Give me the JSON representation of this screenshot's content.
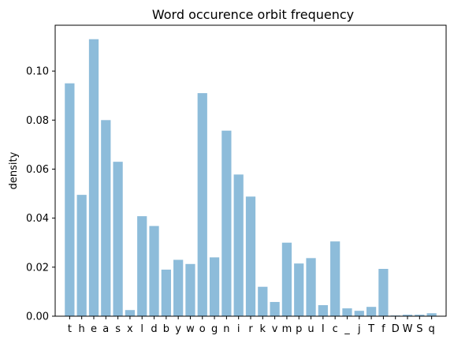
{
  "chart_data": {
    "type": "bar",
    "title": "Word occurence orbit frequency",
    "xlabel": "",
    "ylabel": "density",
    "categories": [
      "t",
      "h",
      "e",
      "a",
      "s",
      "x",
      "l",
      "d",
      "b",
      "y",
      "w",
      "o",
      "g",
      "n",
      "i",
      "r",
      "k",
      "v",
      "m",
      "p",
      "u",
      "I",
      "c",
      "_",
      "j",
      "T",
      "f",
      "D",
      "W",
      "S",
      "q"
    ],
    "values": [
      0.095,
      0.0495,
      0.113,
      0.08,
      0.063,
      0.0025,
      0.0408,
      0.0368,
      0.019,
      0.023,
      0.0213,
      0.091,
      0.024,
      0.0757,
      0.0578,
      0.0488,
      0.012,
      0.0058,
      0.03,
      0.0215,
      0.0237,
      0.0045,
      0.0305,
      0.0032,
      0.0022,
      0.0038,
      0.0193,
      0.0003,
      0.0006,
      0.0006,
      0.0012
    ],
    "yticks": [
      0.0,
      0.02,
      0.04,
      0.06,
      0.08,
      0.1
    ],
    "ytick_labels": [
      "0.00",
      "0.02",
      "0.04",
      "0.06",
      "0.08",
      "0.10"
    ],
    "ylim": [
      0,
      0.1187
    ],
    "grid": false,
    "bar_color": "#8dbcda",
    "legend": "none"
  }
}
